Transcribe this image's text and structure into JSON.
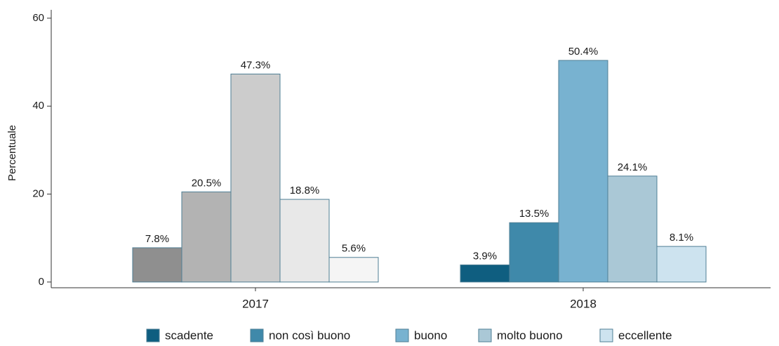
{
  "chart_data": {
    "type": "bar",
    "y_label": "Percentuale",
    "categories": [
      "2017",
      "2018"
    ],
    "series": [
      {
        "name": "scadente",
        "color": "#0f5e80",
        "bar_colors": [
          "#8f8f8f",
          "#0f5e80"
        ],
        "values": [
          7.8,
          3.9
        ],
        "value_labels": [
          "7.8%",
          "3.9%"
        ]
      },
      {
        "name": "non così buono",
        "color": "#3f89aa",
        "bar_colors": [
          "#b3b3b3",
          "#3f89aa"
        ],
        "values": [
          20.5,
          13.5
        ],
        "value_labels": [
          "20.5%",
          "13.5%"
        ]
      },
      {
        "name": "buono",
        "color": "#78b2d0",
        "bar_colors": [
          "#cccccc",
          "#78b2d0"
        ],
        "values": [
          47.3,
          50.4
        ],
        "value_labels": [
          "47.3%",
          "50.4%"
        ]
      },
      {
        "name": "molto buono",
        "color": "#aac8d6",
        "bar_colors": [
          "#e8e8e8",
          "#aac8d6"
        ],
        "values": [
          18.8,
          24.1
        ],
        "value_labels": [
          "18.8%",
          "24.1%"
        ]
      },
      {
        "name": "eccellente",
        "color": "#cde3ef",
        "bar_colors": [
          "#f5f5f5",
          "#cde3ef"
        ],
        "values": [
          5.6,
          8.1
        ],
        "value_labels": [
          "5.6%",
          "8.1%"
        ]
      }
    ],
    "ylim": [
      -1.3,
      61.9
    ],
    "yticks": [
      0,
      20,
      40,
      60
    ],
    "legend": "bottom"
  }
}
